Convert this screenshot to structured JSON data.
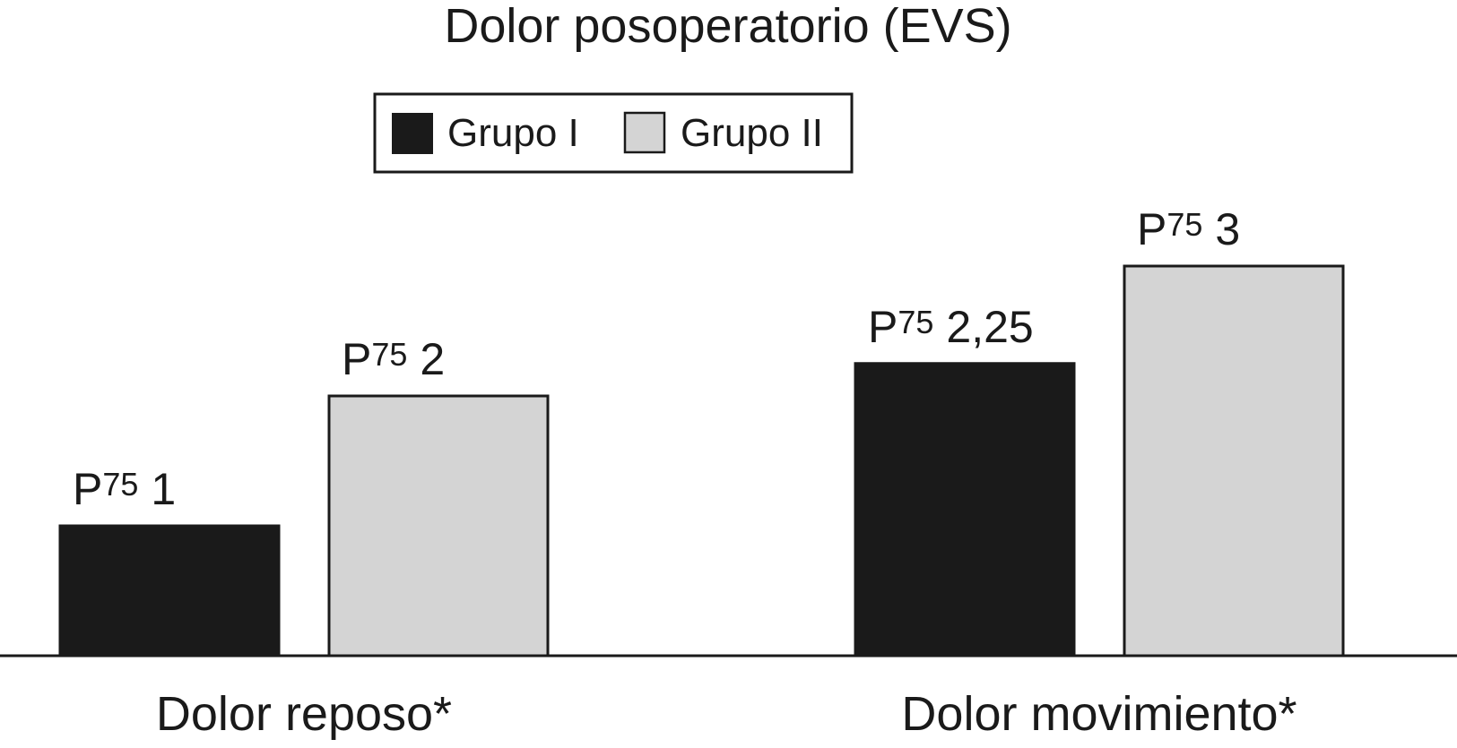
{
  "chart_data": {
    "type": "bar",
    "title": "Dolor posoperatorio (EVS)",
    "xlabel": "",
    "ylabel": "",
    "categories": [
      "Dolor reposo*",
      "Dolor movimiento*"
    ],
    "series": [
      {
        "name": "Grupo I",
        "values": [
          1,
          2.25
        ],
        "labels": [
          "1",
          "2,25"
        ],
        "color": "#1a1a1a"
      },
      {
        "name": "Grupo II",
        "values": [
          2,
          3
        ],
        "labels": [
          "2",
          "3"
        ],
        "color": "#d4d4d4"
      }
    ],
    "value_prefix": {
      "main": "P",
      "subscript": "75"
    },
    "ylim": [
      0,
      4
    ],
    "grid": false,
    "legend_position": "top-center"
  }
}
